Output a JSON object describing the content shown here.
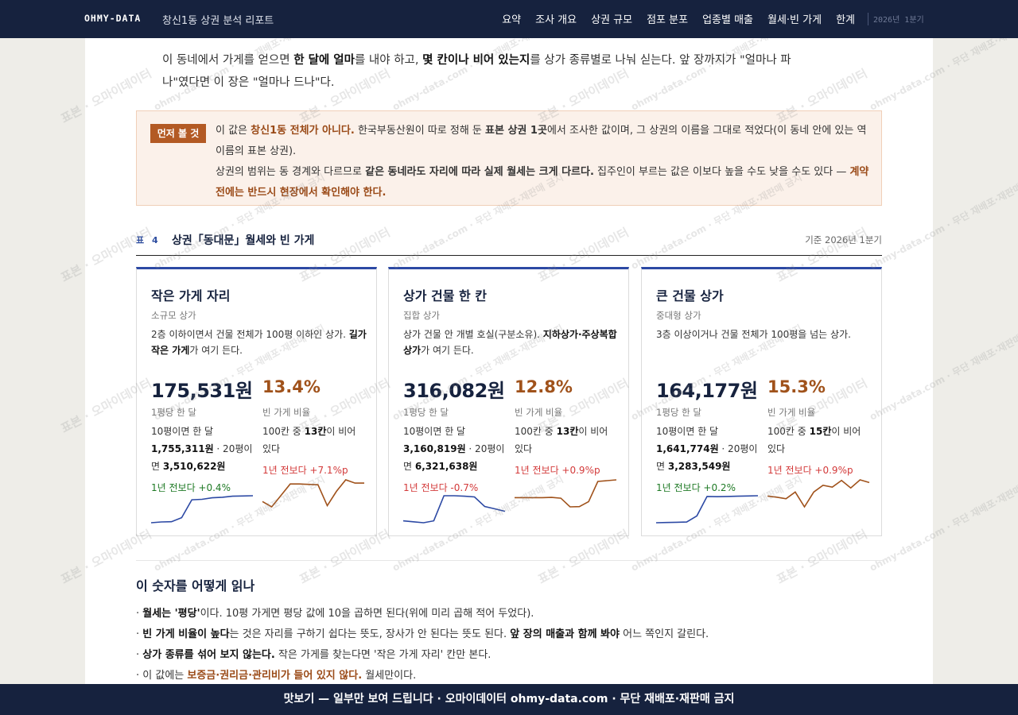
{
  "header": {
    "brand": "OHMY-DATA",
    "report_title": "창신1동 상권 분석 리포트",
    "nav": [
      "요약",
      "조사 개요",
      "상권 규모",
      "점포 분포",
      "업종별 매출",
      "월세·빈 가게",
      "한계"
    ],
    "quarter": "2026년 1분기"
  },
  "intro": {
    "p1_a": "이 동네에서 가게를 얻으면 ",
    "p1_b": "한 달에 얼마",
    "p1_c": "를 내야 하고, ",
    "p1_d": "몇 칸이나 비어 있는지",
    "p1_e": "를 상가 종류별로 나눠 싣는다. 앞 장까지가 \"얼마나 파나\"였다면 이 장은 \"얼마나 드나\"다."
  },
  "callout": {
    "badge": "먼저 볼 것",
    "s1": "이 값은 ",
    "s2": "창신1동 전체가 아니다.",
    "s3": " 한국부동산원이 따로 정해 둔 ",
    "s4": "표본 상권 1곳",
    "s5": "에서 조사한 값이며, 그 상권의 이름을 그대로 적었다(이 동네 안에 있는 역 이름의 표본 상권).",
    "s6": "상권의 범위는 동 경계와 다르므로 ",
    "s7": "같은 동네라도 자리에 따라 실제 월세는 크게 다르다.",
    "s8": " 집주인이 부르는 값은 이보다 높을 수도 낮을 수도 있다 — ",
    "s9": "계약 전에는 반드시 현장에서 확인해야 한다."
  },
  "table": {
    "num": "표 4",
    "title": "상권「동대문」월세와 빈 가게",
    "basis": "기준 2026년 1분기"
  },
  "cards": [
    {
      "title": "작은 가게 자리",
      "sub": "소규모 상가",
      "desc_a": "2층 이하이면서 건물 전체가 100평 이하인 상가. ",
      "desc_b": "길가 작은 가게",
      "desc_c": "가 여기 든다.",
      "price": "175,531원",
      "price_label": "1평당 한 달",
      "ex_a": "10평이면 한 달 ",
      "ex_b": "1,755,311원",
      "ex_c": " · 20평이면 ",
      "ex_d": "3,510,622원",
      "rent_change": "1년 전보다 +0.4%",
      "vacancy": "13.4%",
      "vac_label": "빈 가게 비율",
      "vac_a": "100칸 중 ",
      "vac_b": "13칸",
      "vac_c": "이 비어 있다",
      "vac_change": "1년 전보다 +7.1%p",
      "rent_trend": [
        3,
        3.3,
        3.4,
        5,
        12,
        12.2,
        12.8,
        13,
        13.4,
        13.5,
        13.6
      ],
      "vac_trend": [
        9.5,
        8.2,
        11,
        13.8,
        13.8,
        13.7,
        13.6,
        8.5,
        12,
        14.8,
        14,
        14
      ]
    },
    {
      "title": "상가 건물 한 칸",
      "sub": "집합 상가",
      "desc_a": "상가 건물 안 개별 호실(구분소유). ",
      "desc_b": "지하상가·주상복합 상가",
      "desc_c": "가 여기 든다.",
      "price": "316,082원",
      "price_label": "1평당 한 달",
      "ex_a": "10평이면 한 달 ",
      "ex_b": "3,160,819원",
      "ex_c": " · 20평이면 ",
      "ex_d": "6,321,638원",
      "rent_change": "1년 전보다 -0.7%",
      "vacancy": "12.8%",
      "vac_label": "빈 가게 비율",
      "vac_a": "100칸 중 ",
      "vac_b": "13칸",
      "vac_c": "이 비어 있다",
      "vac_change": "1년 전보다 +0.9%p",
      "rent_trend": [
        5,
        4.6,
        4.2,
        5,
        15.5,
        15.5,
        15.3,
        15,
        11,
        10,
        9
      ],
      "vac_trend": [
        12,
        12,
        12,
        12,
        12.1,
        11.8,
        8.5,
        8.6,
        10.5,
        18.2,
        18.5,
        18.8
      ]
    },
    {
      "title": "큰 건물 상가",
      "sub": "중대형 상가",
      "desc_a": "3층 이상이거나 건물 전체가 100평을 넘는 상가.",
      "desc_b": "",
      "desc_c": "",
      "price": "164,177원",
      "price_label": "1평당 한 달",
      "ex_a": "10평이면 한 달 ",
      "ex_b": "1,641,774원",
      "ex_c": " · 20평이면 ",
      "ex_d": "3,283,549원",
      "rent_change": "1년 전보다 +0.2%",
      "vacancy": "15.3%",
      "vac_label": "빈 가게 비율",
      "vac_a": "100칸 중 ",
      "vac_b": "15칸",
      "vac_c": "이 비어 있다",
      "vac_change": "1년 전보다 +0.9%p",
      "rent_trend": [
        2,
        2.1,
        2.2,
        2.3,
        5,
        13.5,
        13.4,
        13.5,
        13.6,
        13.7,
        13.8
      ],
      "vac_trend": [
        14,
        13.6,
        13,
        15.5,
        10,
        15.5,
        18,
        17.3,
        19.8,
        17,
        20,
        19
      ]
    }
  ],
  "howto": {
    "title": "이 숫자를 어떻게 읽나",
    "l1_a": "· ",
    "l1_b": "월세는 '평당'",
    "l1_c": "이다. 10평 가게면 평당 값에 10을 곱하면 된다(위에 미리 곱해 적어 두었다).",
    "l2_a": "· ",
    "l2_b": "빈 가게 비율이 높다",
    "l2_c": "는 것은 자리를 구하기 쉽다는 뜻도, 장사가 안 된다는 뜻도 된다. ",
    "l2_d": "앞 장의 매출과 함께 봐야",
    "l2_e": " 어느 쪽인지 갈린다.",
    "l3_a": "· ",
    "l3_b": "상가 종류를 섞어 보지 않는다.",
    "l3_c": " 작은 가게를 찾는다면 '작은 가게 자리' 칸만 본다.",
    "l4_a": "· 이 값에는 ",
    "l4_b": "보증금·권리금·관리비가 들어 있지 않다.",
    "l4_c": " 월세만이다."
  },
  "watermark": {
    "text1": "표본 · 오마이데이터",
    "text2": "ohmy-data.com · 무단 재배포·재판매 금지"
  },
  "footer": "맛보기 — 일부만 보여 드립니다 · 오마이데이터 ohmy-data.com · 무단 재배포·재판매 금지",
  "colors": {
    "navy": "#16223e",
    "rent_line": "#2c49a4",
    "vacancy_line": "#a0521b",
    "up": "#1f7a25",
    "down": "#d33a3a"
  }
}
